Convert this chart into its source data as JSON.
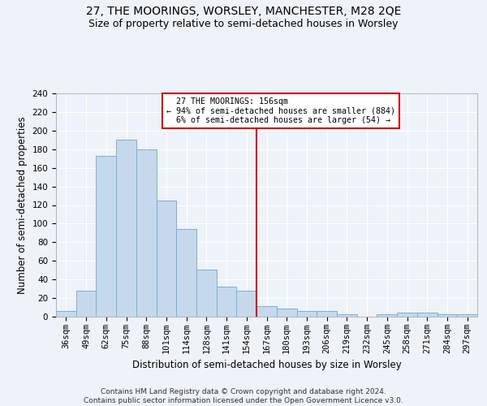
{
  "title": "27, THE MOORINGS, WORSLEY, MANCHESTER, M28 2QE",
  "subtitle": "Size of property relative to semi-detached houses in Worsley",
  "xlabel": "Distribution of semi-detached houses by size in Worsley",
  "ylabel": "Number of semi-detached properties",
  "footer_line1": "Contains HM Land Registry data © Crown copyright and database right 2024.",
  "footer_line2": "Contains public sector information licensed under the Open Government Licence v3.0.",
  "categories": [
    "36sqm",
    "49sqm",
    "62sqm",
    "75sqm",
    "88sqm",
    "101sqm",
    "114sqm",
    "128sqm",
    "141sqm",
    "154sqm",
    "167sqm",
    "180sqm",
    "193sqm",
    "206sqm",
    "219sqm",
    "232sqm",
    "245sqm",
    "258sqm",
    "271sqm",
    "284sqm",
    "297sqm"
  ],
  "values": [
    6,
    28,
    173,
    190,
    180,
    125,
    94,
    51,
    32,
    28,
    11,
    9,
    6,
    6,
    3,
    0,
    3,
    4,
    4,
    3,
    3
  ],
  "bar_color": "#c6d9ec",
  "bar_edge_color": "#7aafd4",
  "property_label": "27 THE MOORINGS: 156sqm",
  "smaller_pct": "94%",
  "smaller_count": 884,
  "larger_pct": "6%",
  "larger_count": 54,
  "annotation_box_color": "#cc0000",
  "vline_color": "#cc0000",
  "vline_bin_index": 9,
  "ylim": [
    0,
    240
  ],
  "yticks": [
    0,
    20,
    40,
    60,
    80,
    100,
    120,
    140,
    160,
    180,
    200,
    220,
    240
  ],
  "bg_color": "#eef2f9",
  "grid_color": "#ffffff",
  "title_fontsize": 10,
  "subtitle_fontsize": 9,
  "axis_label_fontsize": 8.5,
  "tick_fontsize": 7.5,
  "footer_fontsize": 6.5
}
